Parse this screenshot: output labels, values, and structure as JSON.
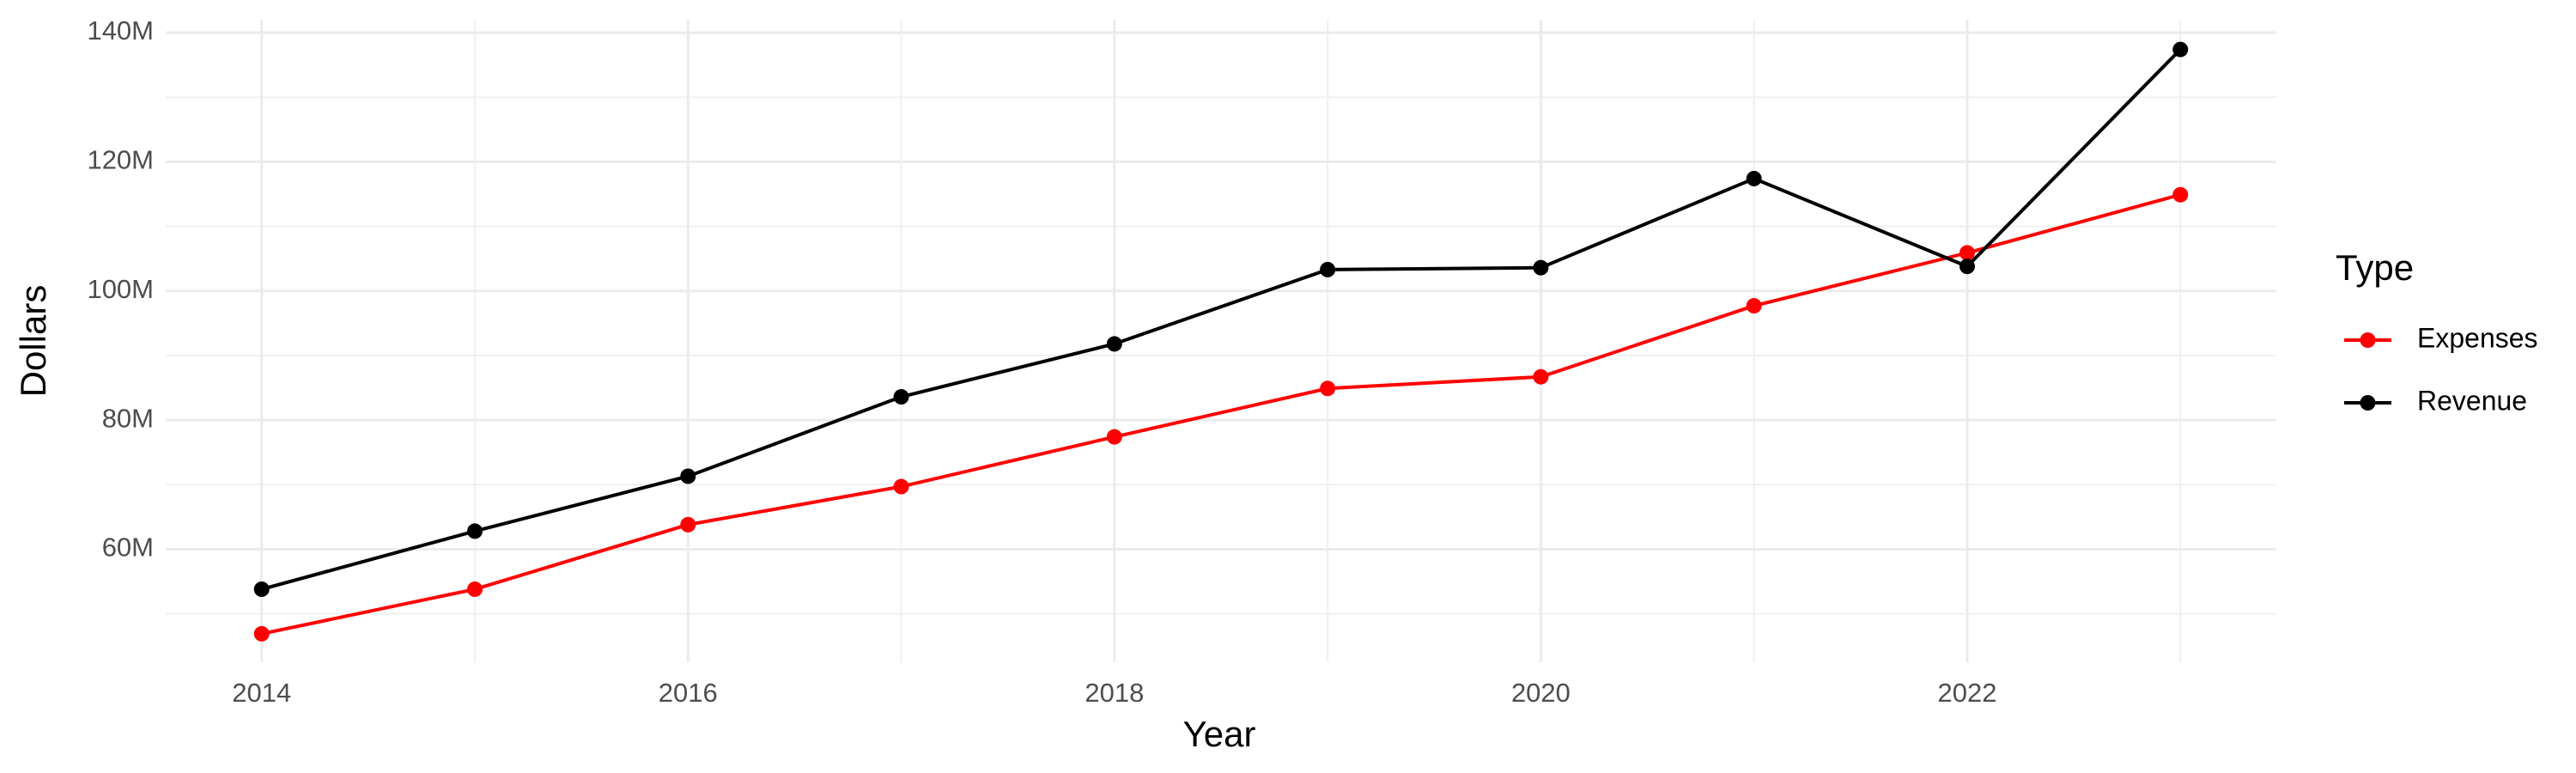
{
  "chart_data": {
    "type": "line",
    "x_label": "Year",
    "y_label": "Dollars",
    "x": [
      2014,
      2015,
      2016,
      2017,
      2018,
      2019,
      2020,
      2021,
      2022,
      2023
    ],
    "series": [
      {
        "name": "Expenses",
        "color": "#ff0000",
        "values": [
          46900000,
          53800000,
          63800000,
          69700000,
          77400000,
          84900000,
          86700000,
          97700000,
          105900000,
          114900000
        ]
      },
      {
        "name": "Revenue",
        "color": "#000000",
        "values": [
          53800000,
          62800000,
          71300000,
          83600000,
          91800000,
          103300000,
          103600000,
          117400000,
          103800000,
          137400000
        ]
      }
    ],
    "xlim": [
      2013.55,
      2023.45
    ],
    "xticks": [
      2014,
      2016,
      2018,
      2020,
      2022
    ],
    "ylim": [
      42500000,
      142000000
    ],
    "yticks": [
      {
        "value": 60000000,
        "label": "60M"
      },
      {
        "value": 80000000,
        "label": "80M"
      },
      {
        "value": 100000000,
        "label": "100M"
      },
      {
        "value": 120000000,
        "label": "120M"
      },
      {
        "value": 140000000,
        "label": "140M"
      }
    ],
    "grid": true,
    "legend_title": "Type",
    "legend_position": "right"
  }
}
